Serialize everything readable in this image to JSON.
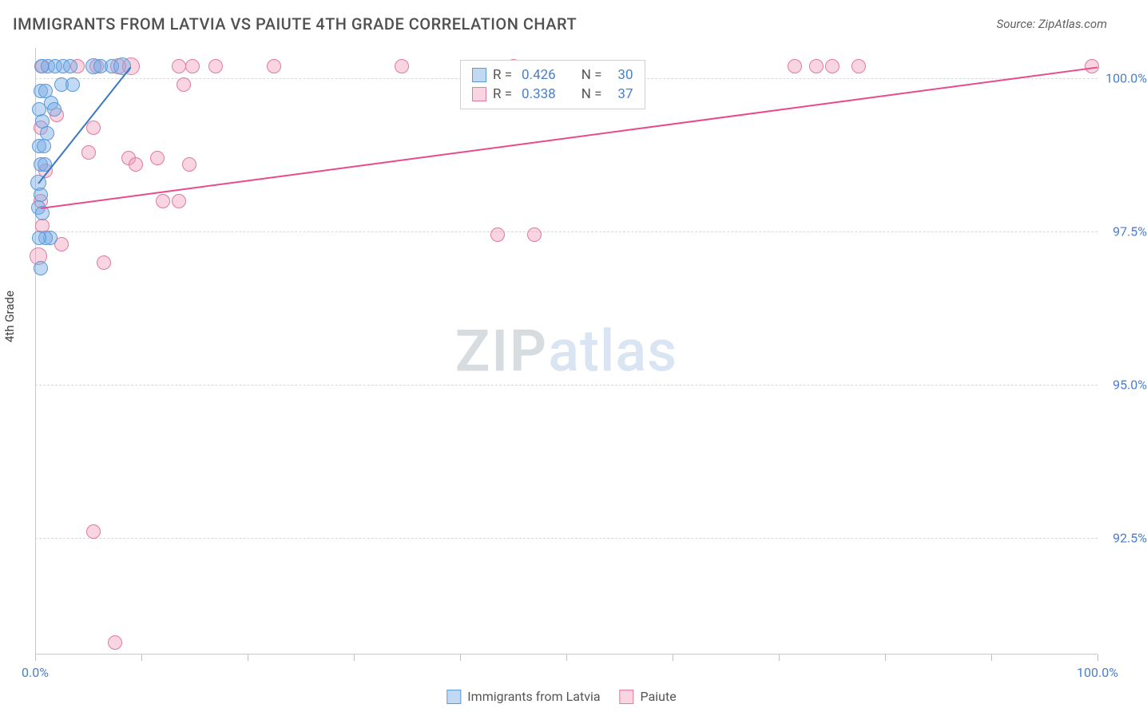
{
  "header": {
    "title": "IMMIGRANTS FROM LATVIA VS PAIUTE 4TH GRADE CORRELATION CHART",
    "source": "Source: ZipAtlas.com"
  },
  "chart": {
    "type": "scatter",
    "y_axis_label": "4th Grade",
    "background_color": "#ffffff",
    "grid_color": "#d8d8d8",
    "axis_color": "#c8c8c8",
    "tick_label_color": "#4a7fc9",
    "xlim": [
      0,
      100
    ],
    "ylim": [
      90.6,
      100.5
    ],
    "y_ticks": [
      {
        "value": 100.0,
        "label": "100.0%"
      },
      {
        "value": 97.5,
        "label": "97.5%"
      },
      {
        "value": 95.0,
        "label": "95.0%"
      },
      {
        "value": 92.5,
        "label": "92.5%"
      }
    ],
    "x_ticks": [
      0,
      10,
      20,
      30,
      40,
      50,
      60,
      70,
      80,
      90,
      100
    ],
    "x_tick_labels": {
      "0": "0.0%",
      "100": "100.0%"
    },
    "watermark": {
      "zip": "ZIP",
      "atlas": "atlas"
    },
    "series": [
      {
        "name": "Immigrants from Latvia",
        "fill_color": "rgba(120,170,230,0.45)",
        "stroke_color": "#5a9ad8",
        "line_color": "#3b78c4",
        "marker_radius": 9,
        "R_label": "R = ",
        "R": "0.426",
        "N_label": "N = ",
        "N": "30",
        "trend": {
          "x1": 0.3,
          "y1": 98.3,
          "x2": 9.0,
          "y2": 100.2
        },
        "points": [
          {
            "x": 0.6,
            "y": 100.2,
            "r": 9
          },
          {
            "x": 1.2,
            "y": 100.2,
            "r": 9
          },
          {
            "x": 1.9,
            "y": 100.2,
            "r": 9
          },
          {
            "x": 2.6,
            "y": 100.2,
            "r": 9
          },
          {
            "x": 3.3,
            "y": 100.2,
            "r": 9
          },
          {
            "x": 0.5,
            "y": 99.8,
            "r": 9
          },
          {
            "x": 1.0,
            "y": 99.8,
            "r": 9
          },
          {
            "x": 1.5,
            "y": 99.6,
            "r": 9
          },
          {
            "x": 0.4,
            "y": 99.5,
            "r": 9
          },
          {
            "x": 0.7,
            "y": 99.3,
            "r": 9
          },
          {
            "x": 1.1,
            "y": 99.1,
            "r": 9
          },
          {
            "x": 0.4,
            "y": 98.9,
            "r": 9
          },
          {
            "x": 0.8,
            "y": 98.9,
            "r": 9
          },
          {
            "x": 0.5,
            "y": 98.6,
            "r": 9
          },
          {
            "x": 0.9,
            "y": 98.6,
            "r": 9
          },
          {
            "x": 0.3,
            "y": 98.3,
            "r": 10
          },
          {
            "x": 0.5,
            "y": 98.1,
            "r": 9
          },
          {
            "x": 0.3,
            "y": 97.9,
            "r": 9
          },
          {
            "x": 0.7,
            "y": 97.8,
            "r": 9
          },
          {
            "x": 5.5,
            "y": 100.2,
            "r": 10
          },
          {
            "x": 6.2,
            "y": 100.2,
            "r": 9
          },
          {
            "x": 7.2,
            "y": 100.2,
            "r": 9
          },
          {
            "x": 8.2,
            "y": 100.2,
            "r": 11
          },
          {
            "x": 1.4,
            "y": 97.4,
            "r": 9
          },
          {
            "x": 1.0,
            "y": 97.4,
            "r": 9
          },
          {
            "x": 0.4,
            "y": 97.4,
            "r": 9
          },
          {
            "x": 0.5,
            "y": 96.9,
            "r": 9
          },
          {
            "x": 2.5,
            "y": 99.9,
            "r": 9
          },
          {
            "x": 3.5,
            "y": 99.9,
            "r": 9
          },
          {
            "x": 1.8,
            "y": 99.5,
            "r": 9
          }
        ]
      },
      {
        "name": "Paiute",
        "fill_color": "rgba(240,150,180,0.40)",
        "stroke_color": "#e07aa0",
        "line_color": "#e84b8a",
        "marker_radius": 9,
        "R_label": "R = ",
        "R": "0.338",
        "N_label": "N = ",
        "N": "37",
        "trend": {
          "x1": 0.5,
          "y1": 97.9,
          "x2": 100.0,
          "y2": 100.2
        },
        "points": [
          {
            "x": 0.7,
            "y": 100.2,
            "r": 9
          },
          {
            "x": 4.0,
            "y": 100.2,
            "r": 9
          },
          {
            "x": 5.8,
            "y": 100.2,
            "r": 9
          },
          {
            "x": 7.8,
            "y": 100.2,
            "r": 10
          },
          {
            "x": 9.0,
            "y": 100.2,
            "r": 11
          },
          {
            "x": 13.5,
            "y": 100.2,
            "r": 9
          },
          {
            "x": 14.8,
            "y": 100.2,
            "r": 9
          },
          {
            "x": 17.0,
            "y": 100.2,
            "r": 9
          },
          {
            "x": 22.5,
            "y": 100.2,
            "r": 9
          },
          {
            "x": 34.5,
            "y": 100.2,
            "r": 9
          },
          {
            "x": 45.0,
            "y": 100.2,
            "r": 9
          },
          {
            "x": 71.5,
            "y": 100.2,
            "r": 9
          },
          {
            "x": 73.5,
            "y": 100.2,
            "r": 9
          },
          {
            "x": 75.0,
            "y": 100.2,
            "r": 9
          },
          {
            "x": 77.5,
            "y": 100.2,
            "r": 9
          },
          {
            "x": 99.5,
            "y": 100.2,
            "r": 9
          },
          {
            "x": 14.0,
            "y": 99.9,
            "r": 9
          },
          {
            "x": 8.8,
            "y": 98.7,
            "r": 9
          },
          {
            "x": 5.0,
            "y": 98.8,
            "r": 9
          },
          {
            "x": 0.5,
            "y": 99.2,
            "r": 9
          },
          {
            "x": 2.5,
            "y": 97.3,
            "r": 9
          },
          {
            "x": 0.3,
            "y": 97.1,
            "r": 11
          },
          {
            "x": 6.5,
            "y": 97.0,
            "r": 9
          },
          {
            "x": 9.5,
            "y": 98.6,
            "r": 9
          },
          {
            "x": 11.5,
            "y": 98.7,
            "r": 9
          },
          {
            "x": 13.5,
            "y": 98.0,
            "r": 9
          },
          {
            "x": 14.5,
            "y": 98.6,
            "r": 9
          },
          {
            "x": 12.0,
            "y": 98.0,
            "r": 9
          },
          {
            "x": 43.5,
            "y": 97.45,
            "r": 9
          },
          {
            "x": 47.0,
            "y": 97.45,
            "r": 9
          },
          {
            "x": 5.5,
            "y": 92.6,
            "r": 9
          },
          {
            "x": 7.5,
            "y": 90.8,
            "r": 9
          },
          {
            "x": 0.5,
            "y": 98.0,
            "r": 9
          },
          {
            "x": 1.0,
            "y": 98.5,
            "r": 9
          },
          {
            "x": 0.7,
            "y": 97.6,
            "r": 9
          },
          {
            "x": 5.5,
            "y": 99.2,
            "r": 9
          },
          {
            "x": 2.0,
            "y": 99.4,
            "r": 9
          }
        ]
      }
    ],
    "bottom_legend": [
      {
        "label": "Immigrants from Latvia",
        "fill": "rgba(120,170,230,0.45)",
        "stroke": "#5a9ad8"
      },
      {
        "label": "Paiute",
        "fill": "rgba(240,150,180,0.40)",
        "stroke": "#e07aa0"
      }
    ]
  }
}
